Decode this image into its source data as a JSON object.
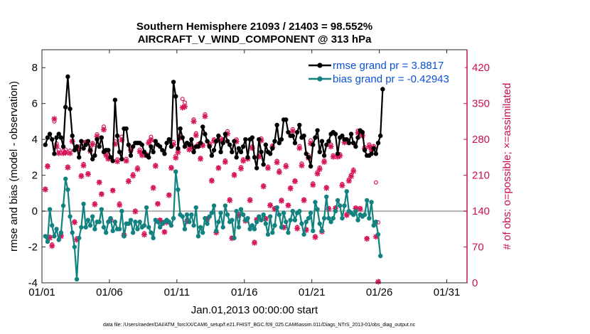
{
  "chart_data": {
    "type": "line",
    "title_line1": "Southern Hemisphere 21093 / 21403 = 98.552%",
    "title_line2": "AIRCRAFT_V_WIND_COMPONENT @ 313 hPa",
    "xlabel": "Jan.01,2013 00:00:00 start",
    "ylabel_left": "rmse and bias (model - observation)",
    "ylabel_right": "# of obs: o=possible; ×=assimilated",
    "footer": "data file: /Users/raeder/DAI/ATM_forcXX/CAM6_setup/f.e21.FHIST_BGC.f09_025.CAM6assim.011/Diags_NTrS_2013-01/obs_diag_output.nc",
    "x_range": [
      0,
      31.5
    ],
    "ylim_left": [
      -4,
      9
    ],
    "ylim_right": [
      0,
      455
    ],
    "x_tick_values": [
      0,
      5,
      10,
      15,
      20,
      25,
      30
    ],
    "x_tick_labels": [
      "01/01",
      "01/06",
      "01/11",
      "01/16",
      "01/21",
      "01/26",
      "01/31"
    ],
    "y_left_ticks": [
      -4,
      -2,
      0,
      2,
      4,
      6,
      8
    ],
    "y_right_ticks": [
      0,
      70,
      140,
      210,
      280,
      350,
      420
    ],
    "zero_line": 0,
    "legend": [
      "rmse grand pr = 3.8817",
      "bias grand pr = -0.42943"
    ],
    "colors": {
      "rmse": "#000000",
      "bias": "#11827f",
      "obs": "#d6175c",
      "right_axis": "#c8104f",
      "zero_line": "#b3b3b3",
      "legend_text": "#0a52d6"
    },
    "series": [
      {
        "name": "rmse",
        "values": [
          3.7,
          4.1,
          4.3,
          4.0,
          3.2,
          4.1,
          4.3,
          4.1,
          3.6,
          5.8,
          7.5,
          5.7,
          4.2,
          3.4,
          3.6,
          3.0,
          3.9,
          3.5,
          3.7,
          3.9,
          3.4,
          2.9,
          3.1,
          4.0,
          3.6,
          4.1,
          3.3,
          3.4,
          3.4,
          3.0,
          2.8,
          6.2,
          4.2,
          3.3,
          2.9,
          4.6,
          4.6,
          3.7,
          3.1,
          3.6,
          3.8,
          3.8,
          3.8,
          3.7,
          3.3,
          3.1,
          3.0,
          3.6,
          3.3,
          3.9,
          3.7,
          3.6,
          3.4,
          3.2,
          3.8,
          4.0,
          3.6,
          7.2,
          6.4,
          3.5,
          4.6,
          4.1,
          3.6,
          3.8,
          3.7,
          4.0,
          3.3,
          3.6,
          3.6,
          3.8,
          4.7,
          4.3,
          3.9,
          3.6,
          3.1,
          3.4,
          3.9,
          4.2,
          3.3,
          3.8,
          4.3,
          3.9,
          3.7,
          3.3,
          3.9,
          3.0,
          3.5,
          3.3,
          3.6,
          4.0,
          3.0,
          4.0,
          4.1,
          3.0,
          2.4,
          4.0,
          3.3,
          2.6,
          3.7,
          3.3,
          3.2,
          3.5,
          3.9,
          4.8,
          3.8,
          4.0,
          5.1,
          5.1,
          4.4,
          4.2,
          4.2,
          3.8,
          4.4,
          4.8,
          4.1,
          4.2,
          3.2,
          3.0,
          2.5,
          3.7,
          4.1,
          4.5,
          3.3,
          3.9,
          3.1,
          3.7,
          3.9,
          4.3,
          4.4,
          4.3,
          3.2,
          4.1,
          4.2,
          4.0,
          4.0,
          3.8,
          4.3,
          3.8,
          3.6,
          4.1,
          4.5,
          4.4,
          3.4,
          3.1,
          3.1,
          3.2,
          3.5,
          3.2,
          3.8,
          4.2,
          6.8
        ]
      },
      {
        "name": "bias",
        "values": [
          -1.4,
          -1.7,
          0.1,
          -0.8,
          -1.4,
          -1.0,
          -1.6,
          -1.2,
          0.3,
          1.8,
          1.2,
          -0.3,
          -1.2,
          -2.0,
          -3.8,
          -1.5,
          -0.9,
          0.4,
          -0.9,
          -0.5,
          -0.8,
          -0.3,
          -1.0,
          -0.6,
          -0.6,
          0.1,
          -0.9,
          -1.2,
          -0.6,
          -0.4,
          -1.1,
          -0.6,
          -1.0,
          -1.0,
          0.0,
          -1.4,
          -0.7,
          -0.7,
          -0.5,
          -1.2,
          -0.6,
          -1.0,
          -0.6,
          -0.9,
          -0.8,
          0.2,
          -0.9,
          -1.2,
          -1.5,
          -0.5,
          -0.6,
          -0.9,
          -0.7,
          -0.6,
          -0.5,
          -0.6,
          -0.8,
          -0.4,
          2.2,
          1.2,
          -0.2,
          -0.3,
          -1.0,
          -0.2,
          -0.6,
          -0.2,
          -0.8,
          0.2,
          -1.4,
          -0.9,
          -1.2,
          -0.4,
          -0.7,
          -0.3,
          -0.1,
          0.3,
          -1.1,
          -0.6,
          -0.1,
          -0.9,
          0.3,
          -0.2,
          -0.6,
          -0.5,
          -1.5,
          0.0,
          -0.9,
          0.1,
          -0.2,
          -0.5,
          -0.4,
          -1.0,
          -0.8,
          -1.0,
          -0.6,
          -0.3,
          -0.5,
          -0.2,
          -0.7,
          -1.3,
          -0.3,
          -1.2,
          -0.8,
          0.2,
          -0.2,
          -0.9,
          -0.1,
          -0.6,
          -1.2,
          -0.5,
          0.0,
          -0.5,
          -0.1,
          0.0,
          -0.7,
          -1.3,
          -0.6,
          -0.4,
          -0.1,
          -1.1,
          0.5,
          0.1,
          -0.7,
          -1.1,
          -0.4,
          0.8,
          -0.4,
          -0.6,
          -0.4,
          0.0,
          0.6,
          0.3,
          -0.4,
          0.3,
          1.1,
          0.0,
          -0.1,
          -0.2,
          0.0,
          -0.5,
          -0.2,
          -0.3,
          -0.2,
          0.6,
          -0.4,
          0.5,
          -0.8,
          -0.6,
          -1.3,
          -2.5
        ]
      },
      {
        "name": "obs_possible",
        "values": [
          184,
          229,
          90,
          75,
          315,
          272,
          260,
          93,
          258,
          260,
          227,
          258,
          277,
          120,
          87,
          266,
          210,
          232,
          275,
          214,
          262,
          273,
          155,
          290,
          197,
          174,
          305,
          252,
          243,
          124,
          181,
          276,
          241,
          155,
          285,
          95,
          242,
          200,
          262,
          212,
          141,
          225,
          260,
          252,
          97,
          251,
          276,
          285,
          187,
          230,
          155,
          123,
          117,
          100,
          120,
          172,
          226,
          275,
          248,
          260,
          288,
          359,
          352,
          122,
          264,
          268,
          319,
          292,
          271,
          244,
          270,
          329,
          126,
          272,
          201,
          280,
          100,
          225,
          282,
          280,
          239,
          296,
          163,
          88,
          212,
          280,
          134,
          226,
          241,
          122,
          245,
          163,
          266,
          80,
          124,
          248,
          282,
          190,
          126,
          227,
          153,
          268,
          146,
          238,
          219,
          162,
          109,
          230,
          152,
          186,
          300,
          200,
          109,
          267,
          233,
          163,
          105,
          249,
          278,
          194,
          91,
          216,
          225,
          102,
          239,
          187,
          146,
          270,
          249,
          147,
          248,
          251,
          193,
          278,
          134,
          202,
          211,
          221,
          147,
          297,
          146,
          290,
          265,
          87,
          270,
          264,
          267,
          196,
          118
        ]
      },
      {
        "name": "obs_assimilated",
        "values": [
          182,
          227,
          88,
          72,
          320,
          267,
          253,
          91,
          253,
          254,
          225,
          253,
          276,
          118,
          84,
          262,
          208,
          229,
          274,
          212,
          257,
          270,
          153,
          286,
          196,
          173,
          299,
          249,
          242,
          123,
          180,
          271,
          237,
          152,
          279,
          93,
          238,
          198,
          259,
          209,
          139,
          222,
          256,
          249,
          94,
          249,
          273,
          279,
          185,
          228,
          154,
          122,
          116,
          99,
          118,
          171,
          224,
          270,
          244,
          255,
          283,
          342,
          344,
          120,
          260,
          264,
          315,
          288,
          268,
          242,
          268,
          325,
          124,
          269,
          199,
          277,
          98,
          224,
          278,
          277,
          236,
          291,
          161,
          87,
          210,
          276,
          132,
          223,
          238,
          121,
          242,
          161,
          263,
          78,
          123,
          246,
          278,
          188,
          125,
          224,
          151,
          265,
          144,
          235,
          216,
          160,
          108,
          227,
          151,
          184,
          296,
          198,
          106,
          263,
          229,
          161,
          103,
          244,
          272,
          191,
          89,
          213,
          222,
          100,
          236,
          185,
          144,
          266,
          246,
          145,
          246,
          248,
          190,
          274,
          132,
          199,
          208,
          218,
          145,
          293,
          144,
          287,
          262,
          86,
          266,
          260,
          264,
          90,
          2
        ]
      }
    ]
  }
}
